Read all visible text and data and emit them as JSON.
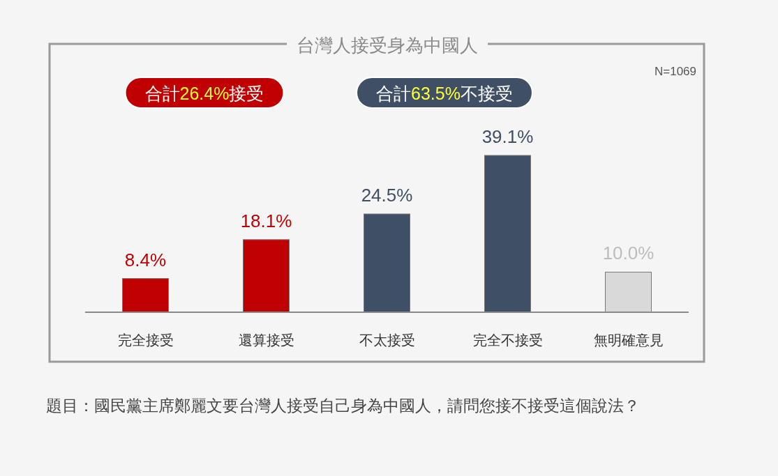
{
  "chart_data": {
    "type": "bar",
    "title": "台灣人接受身為中國人",
    "categories": [
      "完全接受",
      "還算接受",
      "不太接受",
      "完全不接受",
      "無明確意見"
    ],
    "values": [
      8.4,
      18.1,
      24.5,
      39.1,
      10.0
    ],
    "value_labels": [
      "8.4%",
      "18.1%",
      "24.5%",
      "39.1%",
      "10.0%"
    ],
    "colors": [
      "#c00000",
      "#c00000",
      "#3f4f66",
      "#3f4f66",
      "#d9d9d9"
    ],
    "annotations": [
      "N=1069",
      "合計26.4%接受",
      "合計63.5%不接受",
      "題目：國民黨主席鄭麗文要台灣人接受自己身為中國人，請問您接不接受這個說法？"
    ]
  }
}
